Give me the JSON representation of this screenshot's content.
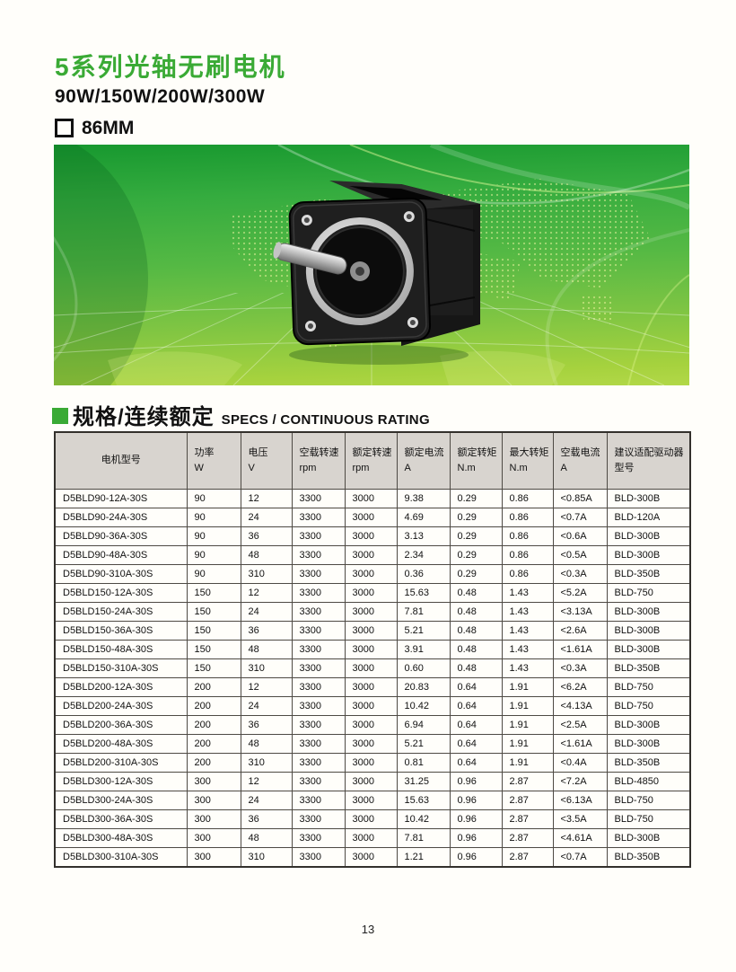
{
  "header": {
    "title": "5系列光轴无刷电机",
    "subtitle": "90W/150W/200W/300W",
    "frame_size": "86MM"
  },
  "banner": {
    "image_name": "brushless-motor-product-photo"
  },
  "section": {
    "title_cn": "规格/连续额定",
    "title_en": "SPECS / CONTINUOUS RATING"
  },
  "colors": {
    "brand_green": "#3aaa35",
    "banner_green_top": "#17982f",
    "banner_green_bottom": "#a6d23e",
    "table_header_bg": "#d8d4cf",
    "table_border": "#4e4a44"
  },
  "table": {
    "columns": [
      {
        "id": "model",
        "label": "电机型号",
        "unit": ""
      },
      {
        "id": "power",
        "label": "功率",
        "unit": "W"
      },
      {
        "id": "voltage",
        "label": "电压",
        "unit": "V"
      },
      {
        "id": "no-load-speed",
        "label": "空载转速",
        "unit": "rpm"
      },
      {
        "id": "rated-speed",
        "label": "额定转速",
        "unit": "rpm"
      },
      {
        "id": "rated-current",
        "label": "额定电流",
        "unit": "A"
      },
      {
        "id": "rated-torque",
        "label": "额定转矩",
        "unit": "N.m"
      },
      {
        "id": "max-torque",
        "label": "最大转矩",
        "unit": "N.m"
      },
      {
        "id": "no-load-current",
        "label": "空载电流",
        "unit": "A"
      },
      {
        "id": "driver",
        "label": "建议适配驱动器型号",
        "unit": ""
      }
    ],
    "rows": [
      [
        "D5BLD90-12A-30S",
        "90",
        "12",
        "3300",
        "3000",
        "9.38",
        "0.29",
        "0.86",
        "<0.85A",
        "BLD-300B"
      ],
      [
        "D5BLD90-24A-30S",
        "90",
        "24",
        "3300",
        "3000",
        "4.69",
        "0.29",
        "0.86",
        "<0.7A",
        "BLD-120A"
      ],
      [
        "D5BLD90-36A-30S",
        "90",
        "36",
        "3300",
        "3000",
        "3.13",
        "0.29",
        "0.86",
        "<0.6A",
        "BLD-300B"
      ],
      [
        "D5BLD90-48A-30S",
        "90",
        "48",
        "3300",
        "3000",
        "2.34",
        "0.29",
        "0.86",
        "<0.5A",
        "BLD-300B"
      ],
      [
        "D5BLD90-310A-30S",
        "90",
        "310",
        "3300",
        "3000",
        "0.36",
        "0.29",
        "0.86",
        "<0.3A",
        "BLD-350B"
      ],
      [
        "D5BLD150-12A-30S",
        "150",
        "12",
        "3300",
        "3000",
        "15.63",
        "0.48",
        "1.43",
        "<5.2A",
        "BLD-750"
      ],
      [
        "D5BLD150-24A-30S",
        "150",
        "24",
        "3300",
        "3000",
        "7.81",
        "0.48",
        "1.43",
        "<3.13A",
        "BLD-300B"
      ],
      [
        "D5BLD150-36A-30S",
        "150",
        "36",
        "3300",
        "3000",
        "5.21",
        "0.48",
        "1.43",
        "<2.6A",
        "BLD-300B"
      ],
      [
        "D5BLD150-48A-30S",
        "150",
        "48",
        "3300",
        "3000",
        "3.91",
        "0.48",
        "1.43",
        "<1.61A",
        "BLD-300B"
      ],
      [
        "D5BLD150-310A-30S",
        "150",
        "310",
        "3300",
        "3000",
        "0.60",
        "0.48",
        "1.43",
        "<0.3A",
        "BLD-350B"
      ],
      [
        "D5BLD200-12A-30S",
        "200",
        "12",
        "3300",
        "3000",
        "20.83",
        "0.64",
        "1.91",
        "<6.2A",
        "BLD-750"
      ],
      [
        "D5BLD200-24A-30S",
        "200",
        "24",
        "3300",
        "3000",
        "10.42",
        "0.64",
        "1.91",
        "<4.13A",
        "BLD-750"
      ],
      [
        "D5BLD200-36A-30S",
        "200",
        "36",
        "3300",
        "3000",
        "6.94",
        "0.64",
        "1.91",
        "<2.5A",
        "BLD-300B"
      ],
      [
        "D5BLD200-48A-30S",
        "200",
        "48",
        "3300",
        "3000",
        "5.21",
        "0.64",
        "1.91",
        "<1.61A",
        "BLD-300B"
      ],
      [
        "D5BLD200-310A-30S",
        "200",
        "310",
        "3300",
        "3000",
        "0.81",
        "0.64",
        "1.91",
        "<0.4A",
        "BLD-350B"
      ],
      [
        "D5BLD300-12A-30S",
        "300",
        "12",
        "3300",
        "3000",
        "31.25",
        "0.96",
        "2.87",
        "<7.2A",
        "BLD-4850"
      ],
      [
        "D5BLD300-24A-30S",
        "300",
        "24",
        "3300",
        "3000",
        "15.63",
        "0.96",
        "2.87",
        "<6.13A",
        "BLD-750"
      ],
      [
        "D5BLD300-36A-30S",
        "300",
        "36",
        "3300",
        "3000",
        "10.42",
        "0.96",
        "2.87",
        "<3.5A",
        "BLD-750"
      ],
      [
        "D5BLD300-48A-30S",
        "300",
        "48",
        "3300",
        "3000",
        "7.81",
        "0.96",
        "2.87",
        "<4.61A",
        "BLD-300B"
      ],
      [
        "D5BLD300-310A-30S",
        "300",
        "310",
        "3300",
        "3000",
        "1.21",
        "0.96",
        "2.87",
        "<0.7A",
        "BLD-350B"
      ]
    ]
  },
  "footer": {
    "page_number": "13"
  }
}
